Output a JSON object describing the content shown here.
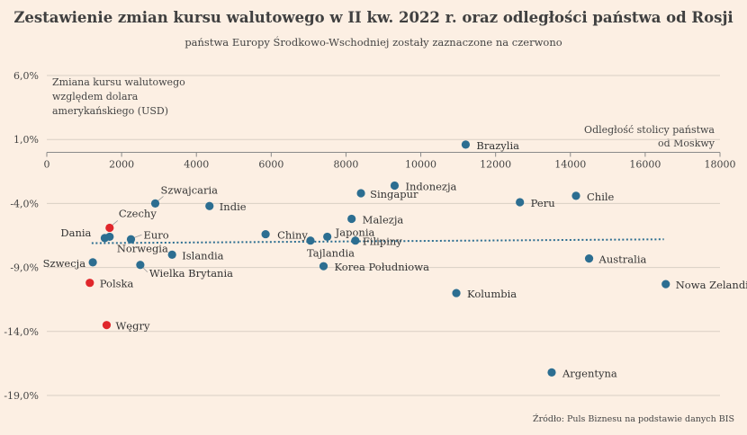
{
  "chart_data": {
    "type": "scatter",
    "title": "Zestawienie zmian kursu walutowego w II kw. 2022 r. oraz odległości państwa od Rosji",
    "subtitle": "państwa Europy Środkowo-Wschodniej zostały zaznaczone na czerwono",
    "ylabel": "Zmiana kursu walutowego względem dolara amerykańskiego (USD)",
    "xlabel": "Odległość stolicy państwa od Moskwy",
    "source": "Źródło: Puls Biznesu na podstawie danych BIS",
    "xlim": [
      0,
      18000
    ],
    "ylim": [
      -19,
      6
    ],
    "x_ticks": [
      "0",
      "2000",
      "4000",
      "6000",
      "8000",
      "10000",
      "12000",
      "14000",
      "16000",
      "18000"
    ],
    "y_ticks": [
      "6,0%",
      "1,0%",
      "-4,0%",
      "-9,0%",
      "-14,0%",
      "-19,0%"
    ],
    "x_axis_at_y": 0,
    "grid": "horizontal",
    "colors": {
      "default": "#2c6e91",
      "highlight": "#e0262b",
      "trend": "#2c6e91",
      "grid": "#d9cfc4"
    },
    "trendline": {
      "x": [
        1200,
        16500
      ],
      "y": [
        -7.1,
        -6.8
      ]
    },
    "points": [
      {
        "name": "Brazylia",
        "x": 11200,
        "y": 0.6,
        "highlight": false
      },
      {
        "name": "Indonezja",
        "x": 9300,
        "y": -2.6,
        "highlight": false
      },
      {
        "name": "Singapur",
        "x": 8400,
        "y": -3.2,
        "highlight": false
      },
      {
        "name": "Szwajcaria",
        "x": 2900,
        "y": -4.0,
        "highlight": false
      },
      {
        "name": "Indie",
        "x": 4350,
        "y": -4.2,
        "highlight": false
      },
      {
        "name": "Chile",
        "x": 14150,
        "y": -3.4,
        "highlight": false
      },
      {
        "name": "Peru",
        "x": 12650,
        "y": -3.9,
        "highlight": false
      },
      {
        "name": "Malezja",
        "x": 8150,
        "y": -5.2,
        "highlight": false
      },
      {
        "name": "Czechy",
        "x": 1680,
        "y": -5.9,
        "highlight": true
      },
      {
        "name": "Dania",
        "x": 1550,
        "y": -6.7,
        "highlight": false
      },
      {
        "name": "Euro",
        "x": 2250,
        "y": -6.8,
        "highlight": false
      },
      {
        "name": "Chiny",
        "x": 5850,
        "y": -6.4,
        "highlight": false
      },
      {
        "name": "Japonia",
        "x": 7500,
        "y": -6.6,
        "highlight": false
      },
      {
        "name": "Tajlandia",
        "x": 7050,
        "y": -6.9,
        "highlight": false
      },
      {
        "name": "Filipiny",
        "x": 8250,
        "y": -6.9,
        "highlight": false
      },
      {
        "name": "Norwegia",
        "x": 1680,
        "y": -6.6,
        "highlight": false
      },
      {
        "name": "Islandia",
        "x": 3350,
        "y": -8.0,
        "highlight": false
      },
      {
        "name": "Szwecja",
        "x": 1230,
        "y": -8.6,
        "highlight": false
      },
      {
        "name": "Wielka Brytania",
        "x": 2500,
        "y": -8.8,
        "highlight": false
      },
      {
        "name": "Korea Południowa",
        "x": 7400,
        "y": -8.9,
        "highlight": false
      },
      {
        "name": "Australia",
        "x": 14500,
        "y": -8.3,
        "highlight": false
      },
      {
        "name": "Polska",
        "x": 1150,
        "y": -10.2,
        "highlight": true
      },
      {
        "name": "Nowa Zelandia",
        "x": 16550,
        "y": -10.3,
        "highlight": false
      },
      {
        "name": "Kolumbia",
        "x": 10950,
        "y": -11.0,
        "highlight": false
      },
      {
        "name": "Węgry",
        "x": 1600,
        "y": -13.5,
        "highlight": true
      },
      {
        "name": "Argentyna",
        "x": 13500,
        "y": -17.2,
        "highlight": false
      }
    ]
  }
}
